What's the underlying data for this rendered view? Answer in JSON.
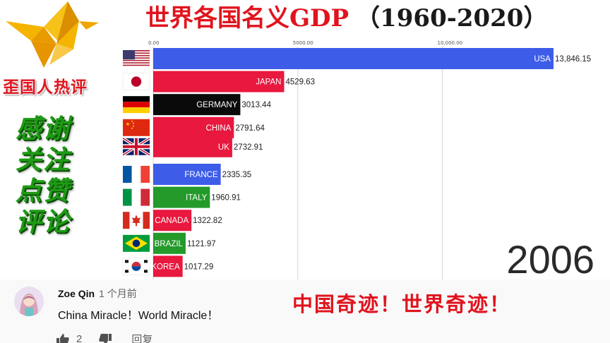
{
  "chart_data": {
    "type": "bar",
    "orientation": "horizontal",
    "title": "世界各国名义GDP",
    "title_years": "（1960-2020）",
    "year": "2006",
    "ticks": [
      0,
      5000,
      10000
    ],
    "tick_labels": [
      "0.00",
      "5000.00",
      "10,000.00"
    ],
    "xlim": [
      0,
      14500
    ],
    "grid": true,
    "categories": [
      "USA",
      "JAPAN",
      "GERMANY",
      "CHINA",
      "UK",
      "FRANCE",
      "ITALY",
      "CANADA",
      "BRAZIL",
      "KOREA"
    ],
    "values": [
      13846.15,
      4529.63,
      3013.44,
      2791.64,
      2732.91,
      2335.35,
      1960.91,
      1322.82,
      1121.97,
      1017.29
    ],
    "value_labels": [
      "13,846.15",
      "4529.63",
      "3013.44",
      "2791.64",
      "2732.91",
      "2335.35",
      "1960.91",
      "1322.82",
      "1121.97",
      "1017.29"
    ],
    "colors": [
      "#3d5ce8",
      "#e8183e",
      "#0a0a0a",
      "#e8183e",
      "#e8183e",
      "#3d5ce8",
      "#239a2a",
      "#e8183e",
      "#239a2a",
      "#e8183e"
    ],
    "flags": [
      "us-flag-icon",
      "japan-flag-icon",
      "germany-flag-icon",
      "china-flag-icon",
      "uk-flag-icon",
      "france-flag-icon",
      "italy-flag-icon",
      "canada-flag-icon",
      "brazil-flag-icon",
      "korea-flag-icon"
    ]
  },
  "branding": {
    "channel_name": "歪国人热评",
    "slogan": [
      "感谢",
      "关注",
      "点赞",
      "评论"
    ],
    "logo_icon": "origami-bird-icon"
  },
  "comment": {
    "author": "Zoe Qin",
    "time": "1 个月前",
    "text": "China Miracle！World Miracle！",
    "like_count": "2",
    "reply_label": "回复"
  },
  "caption": "中国奇迹！世界奇迹！"
}
